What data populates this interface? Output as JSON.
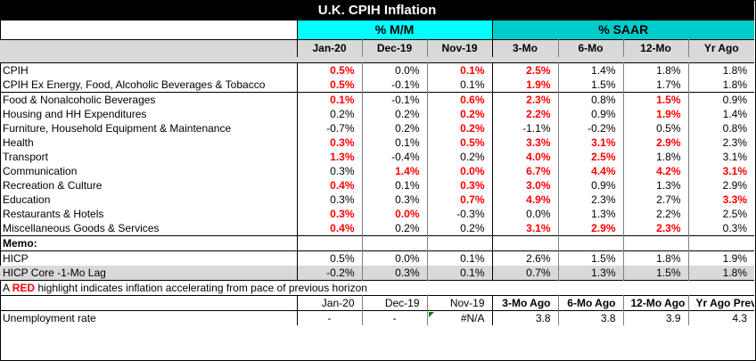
{
  "title": "U.K. CPIH Inflation",
  "groups": {
    "mm": "% M/M",
    "saar": "% SAAR"
  },
  "columns": [
    "Jan-20",
    "Dec-19",
    "Nov-19",
    "3-Mo",
    "6-Mo",
    "12-Mo",
    "Yr Ago"
  ],
  "rows": [
    {
      "label": "CPIH",
      "cells": [
        {
          "v": "0.5%",
          "red": true
        },
        {
          "v": "0.0%",
          "red": false
        },
        {
          "v": "0.1%",
          "red": true
        },
        {
          "v": "2.5%",
          "red": true
        },
        {
          "v": "1.4%",
          "red": false
        },
        {
          "v": "1.8%",
          "red": false
        },
        {
          "v": "1.8%",
          "red": false
        }
      ]
    },
    {
      "label": "CPIH Ex Energy, Food, Alcoholic Beverages & Tobacco",
      "cells": [
        {
          "v": "0.5%",
          "red": true
        },
        {
          "v": "-0.1%",
          "red": false
        },
        {
          "v": "0.1%",
          "red": false
        },
        {
          "v": "1.9%",
          "red": true
        },
        {
          "v": "1.5%",
          "red": false
        },
        {
          "v": "1.7%",
          "red": false
        },
        {
          "v": "1.8%",
          "red": false
        }
      ]
    },
    {
      "label": "Food & Nonalcoholic Beverages",
      "cells": [
        {
          "v": "0.1%",
          "red": true
        },
        {
          "v": "-0.1%",
          "red": false
        },
        {
          "v": "0.6%",
          "red": true
        },
        {
          "v": "2.3%",
          "red": true
        },
        {
          "v": "0.8%",
          "red": false
        },
        {
          "v": "1.5%",
          "red": true
        },
        {
          "v": "0.9%",
          "red": false
        }
      ]
    },
    {
      "label": "Housing and HH Expenditures",
      "cells": [
        {
          "v": "0.2%",
          "red": false
        },
        {
          "v": "0.2%",
          "red": false
        },
        {
          "v": "0.2%",
          "red": true
        },
        {
          "v": "2.2%",
          "red": true
        },
        {
          "v": "0.9%",
          "red": false
        },
        {
          "v": "1.9%",
          "red": true
        },
        {
          "v": "1.4%",
          "red": false
        }
      ]
    },
    {
      "label": "Furniture, Household Equipment & Maintenance",
      "cells": [
        {
          "v": "-0.7%",
          "red": false
        },
        {
          "v": "0.2%",
          "red": false
        },
        {
          "v": "0.2%",
          "red": true
        },
        {
          "v": "-1.1%",
          "red": false
        },
        {
          "v": "-0.2%",
          "red": false
        },
        {
          "v": "0.5%",
          "red": false
        },
        {
          "v": "0.8%",
          "red": false
        }
      ]
    },
    {
      "label": "Health",
      "cells": [
        {
          "v": "0.3%",
          "red": true
        },
        {
          "v": "0.1%",
          "red": false
        },
        {
          "v": "0.5%",
          "red": true
        },
        {
          "v": "3.3%",
          "red": true
        },
        {
          "v": "3.1%",
          "red": true
        },
        {
          "v": "2.9%",
          "red": true
        },
        {
          "v": "2.3%",
          "red": false
        }
      ]
    },
    {
      "label": "Transport",
      "cells": [
        {
          "v": "1.3%",
          "red": true
        },
        {
          "v": "-0.4%",
          "red": false
        },
        {
          "v": "0.2%",
          "red": false
        },
        {
          "v": "4.0%",
          "red": true
        },
        {
          "v": "2.5%",
          "red": true
        },
        {
          "v": "1.8%",
          "red": false
        },
        {
          "v": "3.1%",
          "red": false
        }
      ]
    },
    {
      "label": "Communication",
      "cells": [
        {
          "v": "0.3%",
          "red": false
        },
        {
          "v": "1.4%",
          "red": true
        },
        {
          "v": "0.0%",
          "red": true
        },
        {
          "v": "6.7%",
          "red": true
        },
        {
          "v": "4.4%",
          "red": true
        },
        {
          "v": "4.2%",
          "red": true
        },
        {
          "v": "3.1%",
          "red": true
        }
      ]
    },
    {
      "label": "Recreation & Culture",
      "cells": [
        {
          "v": "0.4%",
          "red": true
        },
        {
          "v": "0.1%",
          "red": false
        },
        {
          "v": "0.3%",
          "red": true
        },
        {
          "v": "3.0%",
          "red": true
        },
        {
          "v": "0.9%",
          "red": false
        },
        {
          "v": "1.3%",
          "red": false
        },
        {
          "v": "2.9%",
          "red": false
        }
      ]
    },
    {
      "label": "Education",
      "cells": [
        {
          "v": "0.3%",
          "red": false
        },
        {
          "v": "0.3%",
          "red": false
        },
        {
          "v": "0.7%",
          "red": true
        },
        {
          "v": "4.9%",
          "red": true
        },
        {
          "v": "2.3%",
          "red": false
        },
        {
          "v": "2.7%",
          "red": false
        },
        {
          "v": "3.3%",
          "red": true
        }
      ]
    },
    {
      "label": "Restaurants & Hotels",
      "cells": [
        {
          "v": "0.3%",
          "red": true
        },
        {
          "v": "0.0%",
          "red": true
        },
        {
          "v": "-0.3%",
          "red": false
        },
        {
          "v": "0.0%",
          "red": false
        },
        {
          "v": "1.3%",
          "red": false
        },
        {
          "v": "2.2%",
          "red": false
        },
        {
          "v": "2.5%",
          "red": false
        }
      ]
    },
    {
      "label": "Miscellaneous Goods & Services",
      "cells": [
        {
          "v": "0.4%",
          "red": true
        },
        {
          "v": "0.2%",
          "red": false
        },
        {
          "v": "0.2%",
          "red": false
        },
        {
          "v": "3.1%",
          "red": true
        },
        {
          "v": "2.9%",
          "red": true
        },
        {
          "v": "2.3%",
          "red": true
        },
        {
          "v": "0.3%",
          "red": false
        }
      ]
    }
  ],
  "memo": {
    "label": "Memo:",
    "rows": [
      {
        "label": "HICP",
        "cells": [
          "0.5%",
          "0.0%",
          "0.1%",
          "2.6%",
          "1.5%",
          "1.8%",
          "1.9%"
        ]
      },
      {
        "label": "HICP Core -1-Mo Lag",
        "cells": [
          "-0.2%",
          "0.3%",
          "0.1%",
          "0.7%",
          "1.3%",
          "1.5%",
          "1.8%"
        ]
      }
    ]
  },
  "note": {
    "prefix": "A ",
    "red_word": "RED",
    "suffix": " highlight indicates inflation accelerating from pace of previous horizon"
  },
  "unemployment": {
    "headers": [
      "Jan-20",
      "Dec-19",
      "Nov-19",
      "3-Mo Ago",
      "6-Mo Ago",
      "12-Mo Ago",
      "Yr Ago Prev"
    ],
    "label": "Unemployment rate",
    "cells": [
      "-",
      "-",
      "#N/A",
      "3.8",
      "3.8",
      "3.9",
      "4.3"
    ]
  },
  "colors": {
    "title_bg": "#000000",
    "mm_header": "#00ffff",
    "saar_header": "#00cccc",
    "gray": "#d9d9d9",
    "red": "#ff0000"
  }
}
